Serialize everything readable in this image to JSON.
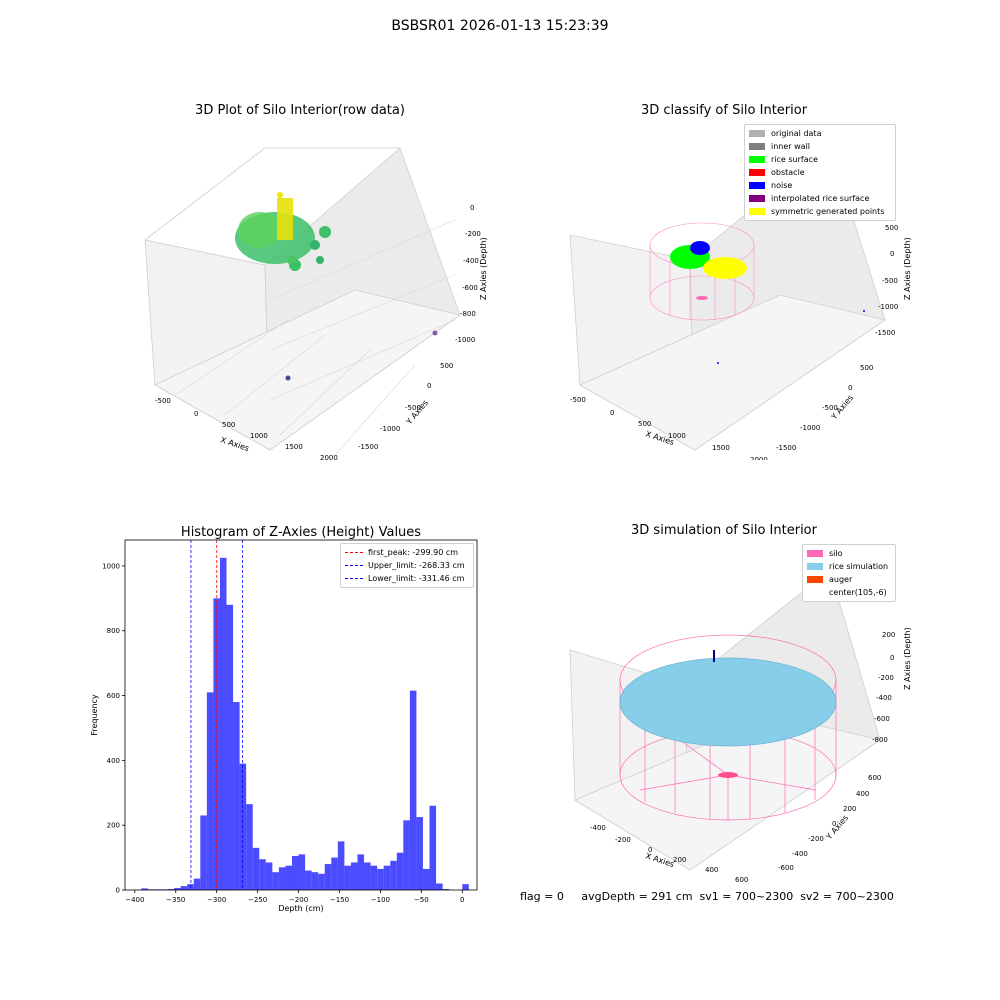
{
  "suptitle": "BSBSR01 2026-01-13 15:23:39",
  "panels": {
    "raw": {
      "title": "3D Plot of Silo Interior(row data)",
      "xlabel": "X Axies",
      "ylabel": "Y Axies",
      "zlabel": "Z Axies (Depth)",
      "xticks": [
        "-500",
        "0",
        "500",
        "1000",
        "1500",
        "2000"
      ],
      "yticks": [
        "500",
        "0",
        "-500",
        "-1000",
        "-1500"
      ],
      "zticks": [
        "0",
        "-200",
        "-400",
        "-600",
        "-800",
        "-1000"
      ]
    },
    "classify": {
      "title": "3D classify of Silo Interior",
      "xlabel": "X Axies",
      "ylabel": "Y Axies",
      "zlabel": "Z Axies (Depth)",
      "xticks": [
        "-500",
        "0",
        "500",
        "1000",
        "1500",
        "2000"
      ],
      "yticks": [
        "500",
        "0",
        "-500",
        "-1000",
        "-1500"
      ],
      "zticks": [
        "500",
        "0",
        "-500",
        "-1000",
        "-1500"
      ],
      "legend": [
        {
          "label": "original data",
          "color": "#b0b0b0"
        },
        {
          "label": "inner wall",
          "color": "#808080"
        },
        {
          "label": "rice surface",
          "color": "#00ff00"
        },
        {
          "label": "obstacle",
          "color": "#ff0000"
        },
        {
          "label": "noise",
          "color": "#0000ff"
        },
        {
          "label": "interpolated rice surface",
          "color": "#800080"
        },
        {
          "label": "symmetric generated points",
          "color": "#ffff00"
        }
      ]
    },
    "simulation": {
      "title": "3D simulation of Silo Interior",
      "xlabel": "X Axies",
      "ylabel": "Y Axies",
      "zlabel": "Z Axies (Depth)",
      "xticks": [
        "-400",
        "-200",
        "0",
        "200",
        "400",
        "600"
      ],
      "yticks": [
        "600",
        "400",
        "200",
        "0",
        "-200",
        "-400",
        "-600"
      ],
      "zticks": [
        "200",
        "0",
        "-200",
        "-400",
        "-600",
        "-800"
      ],
      "legend": [
        {
          "label": "silo",
          "color": "#ff69b4"
        },
        {
          "label": "rice simulation",
          "color": "#87ceeb"
        },
        {
          "label": "auger",
          "color": "#ff4500"
        },
        {
          "label": "center(105,-6)",
          "color": ""
        }
      ]
    }
  },
  "footer": "flag = 0     avgDepth = 291 cm  sv1 = 700~2300  sv2 = 700~2300",
  "chart_data": {
    "type": "bar",
    "title": "Histogram of Z-Axies (Height) Values",
    "xlabel": "Depth (cm)",
    "ylabel": "Frequency",
    "xlim": [
      -412,
      18
    ],
    "ylim": [
      0,
      1080
    ],
    "xticks": [
      -400,
      -350,
      -300,
      -250,
      -200,
      -150,
      -100,
      -50,
      0
    ],
    "yticks": [
      0,
      200,
      400,
      600,
      800,
      1000
    ],
    "bin_width": 8,
    "bin_starts": [
      -400,
      -392,
      -384,
      -376,
      -368,
      -360,
      -352,
      -344,
      -336,
      -328,
      -320,
      -312,
      -304,
      -296,
      -288,
      -280,
      -272,
      -264,
      -256,
      -248,
      -240,
      -232,
      -224,
      -216,
      -208,
      -200,
      -192,
      -184,
      -176,
      -168,
      -160,
      -152,
      -144,
      -136,
      -128,
      -120,
      -112,
      -104,
      -96,
      -88,
      -80,
      -72,
      -64,
      -56,
      -48,
      -40,
      -32,
      -24,
      -16,
      -8,
      0
    ],
    "values": [
      0,
      5,
      2,
      2,
      2,
      3,
      6,
      12,
      18,
      35,
      230,
      610,
      900,
      1025,
      880,
      580,
      390,
      265,
      130,
      95,
      85,
      55,
      70,
      75,
      105,
      110,
      60,
      55,
      50,
      80,
      100,
      150,
      75,
      85,
      110,
      85,
      75,
      65,
      75,
      90,
      115,
      215,
      615,
      225,
      65,
      260,
      20,
      3,
      0,
      0,
      18
    ],
    "vlines": [
      {
        "label": "first_peak: -299.90 cm",
        "x": -299.9,
        "color": "#ff0000"
      },
      {
        "label": "Upper_limit: -268.33 cm",
        "x": -268.33,
        "color": "#0000ff"
      },
      {
        "label": "Lower_limit: -331.46 cm",
        "x": -331.46,
        "color": "#0000ff"
      }
    ],
    "bar_color": "#0000ff"
  }
}
